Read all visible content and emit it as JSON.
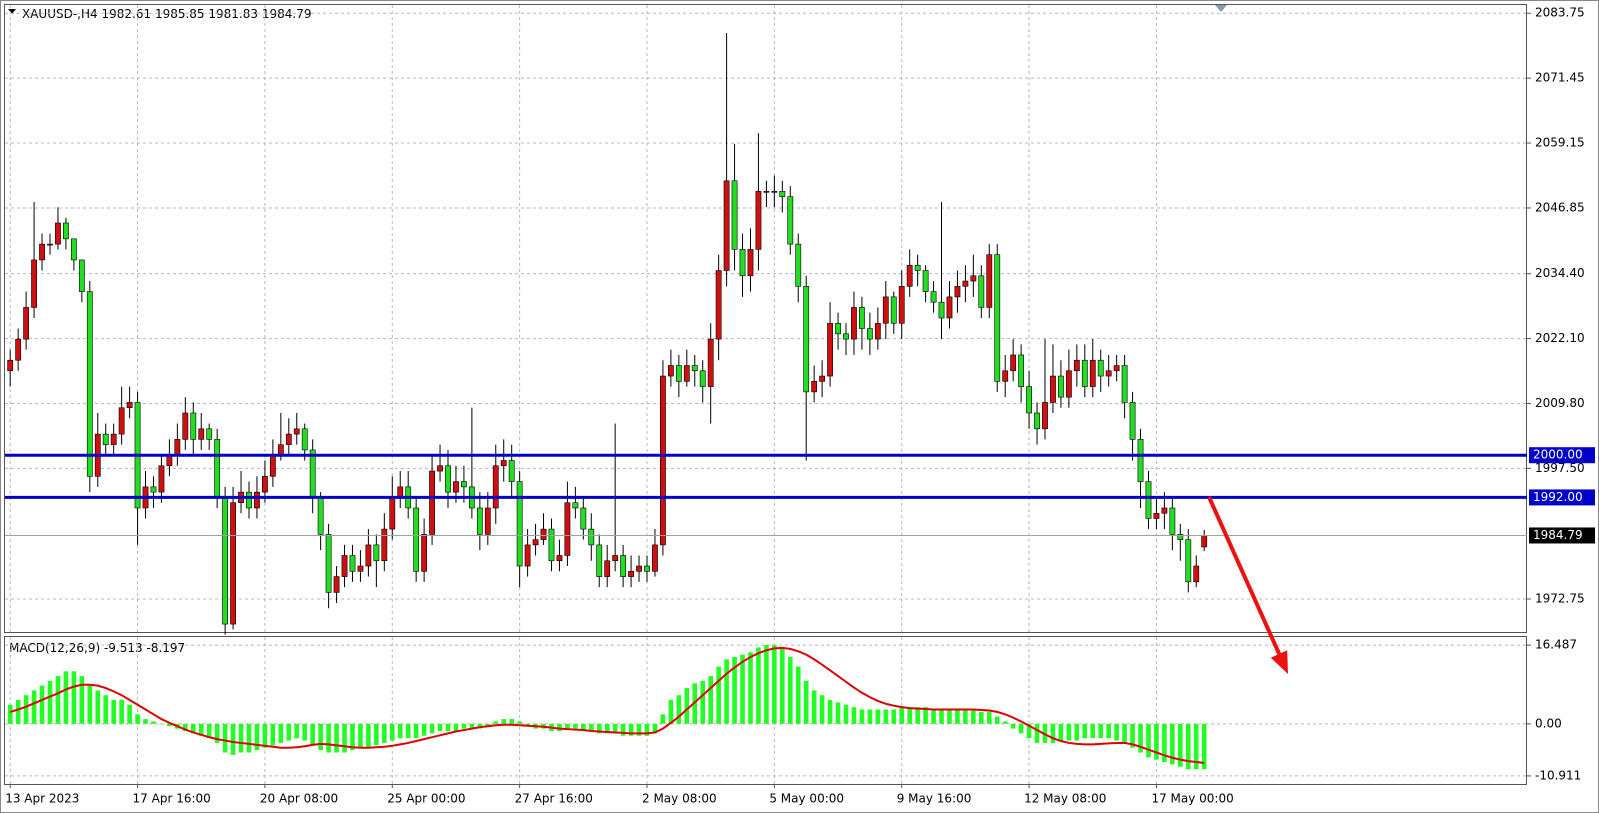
{
  "chart_data": [
    {
      "type": "candlestick",
      "symbol": "XAUUSD-,H4",
      "up_color": "#d01010",
      "down_color": "#22dd22",
      "ylim": [
        1966.5,
        2085.5
      ],
      "yticks": [
        2083.75,
        2071.45,
        2059.15,
        2046.85,
        {
          "value": 2034.4,
          "label": "2034.40"
        },
        {
          "value": 2022.1,
          "label": "2022.10"
        },
        {
          "value": 2009.8,
          "label": "2009.80"
        },
        {
          "value": 1997.5,
          "label": "1997.50"
        },
        1972.75
      ],
      "grid": true,
      "levels": [
        {
          "value": 2000,
          "label": "2000.00"
        },
        {
          "value": 1992,
          "label": "1992.00"
        }
      ],
      "level_color": "#0000c8",
      "categories": [
        "13 Apr 2023",
        null,
        null,
        null,
        null,
        null,
        null,
        null,
        null,
        null,
        null,
        null,
        null,
        null,
        null,
        null,
        "17 Apr 16:00",
        null,
        null,
        null,
        null,
        null,
        null,
        null,
        null,
        null,
        null,
        null,
        null,
        null,
        null,
        null,
        "20 Apr 08:00",
        null,
        null,
        null,
        null,
        null,
        null,
        null,
        null,
        null,
        null,
        null,
        null,
        null,
        null,
        null,
        "25 Apr 00:00",
        null,
        null,
        null,
        null,
        null,
        null,
        null,
        null,
        null,
        null,
        null,
        null,
        null,
        null,
        null,
        "27 Apr 16:00",
        null,
        null,
        null,
        null,
        null,
        null,
        null,
        null,
        null,
        null,
        null,
        null,
        null,
        null,
        null,
        "2 May 08:00",
        null,
        null,
        null,
        null,
        null,
        null,
        null,
        null,
        null,
        null,
        null,
        null,
        null,
        null,
        null,
        "5 May 00:00",
        null,
        null,
        null,
        null,
        null,
        null,
        null,
        null,
        null,
        null,
        null,
        null,
        null,
        null,
        null,
        "9 May 16:00",
        null,
        null,
        null,
        null,
        null,
        null,
        null,
        null,
        null,
        null,
        null,
        null,
        null,
        null,
        null,
        "12 May 08:00",
        null,
        null,
        null,
        null,
        null,
        null,
        null,
        null,
        null,
        null,
        null,
        null,
        null,
        null,
        null,
        "17 May 00:00",
        null,
        null,
        null,
        null,
        null,
        null
      ],
      "open": [
        2016,
        2018,
        2022,
        2028,
        2037,
        2040,
        2040,
        2044,
        2041,
        2037,
        2031,
        1996,
        2004,
        2002,
        2004,
        2009,
        2010,
        1990,
        1994,
        1993,
        1998,
        2000,
        2003,
        2008,
        2003,
        2005,
        2003,
        1992,
        1968,
        1991,
        1993,
        1990,
        1993,
        1996,
        2000,
        2002,
        2004,
        2005,
        2001,
        1992,
        1985,
        1974,
        1977,
        1981,
        1978,
        1979,
        1983,
        1980,
        1986,
        1992,
        1994,
        1990,
        1978,
        1985,
        1997,
        1998,
        1993,
        1995,
        1994,
        1990,
        1985,
        1990,
        1998,
        1999,
        1995,
        1979,
        1983,
        1984,
        1986,
        1980,
        1981,
        1991,
        1990,
        1986,
        1983,
        1977,
        1980,
        1981,
        1977,
        1978,
        1979,
        1978,
        1983,
        2015,
        2017,
        2014,
        2017,
        2016,
        2013,
        2022,
        2035,
        2052,
        2039,
        2034,
        2039,
        2050,
        2050,
        2050,
        2049,
        2040,
        2032,
        2012,
        2014,
        2015,
        2025,
        2023,
        2022,
        2028,
        2024,
        2022,
        2025,
        2030,
        2025,
        2032,
        2036,
        2035,
        2031,
        2029,
        2026,
        2030,
        2032,
        2033,
        2034,
        2028,
        2038,
        2014,
        2016,
        2019,
        2013,
        2008,
        2005,
        2010,
        2015,
        2011,
        2016,
        2018,
        2013,
        2018,
        2015,
        2016,
        2017,
        2010,
        2003,
        1995,
        1988,
        1989,
        1990,
        1985,
        1984,
        1976,
        1982.61
      ],
      "high": [
        2020,
        2024,
        2031,
        2048,
        2042,
        2042,
        2047,
        2045,
        2041,
        2037,
        2033,
        2008,
        2006,
        2006,
        2013,
        2013,
        2012,
        1997,
        1996,
        2000,
        2003,
        2006,
        2011,
        2010,
        2008,
        2006,
        2005,
        1994,
        1994,
        1997,
        1995,
        1996,
        1999,
        2003,
        2008,
        2007,
        2008,
        2006,
        2003,
        1993,
        1987,
        1979,
        1983,
        1983,
        1982,
        1986,
        1985,
        1989,
        1996,
        1997,
        1997,
        1992,
        1988,
        2000,
        2002,
        2001,
        1998,
        1998,
        2009,
        1993,
        1993,
        2002,
        2003,
        2002,
        1997,
        1986,
        1987,
        1989,
        1988,
        1984,
        1995,
        1994,
        1992,
        1989,
        1985,
        1983,
        2006,
        1983,
        1981,
        1981,
        1981,
        1986,
        2018,
        2020,
        2019,
        2020,
        2019,
        2018,
        2025,
        2038,
        2080,
        2059,
        2042,
        2043,
        2061,
        2052,
        2053,
        2052,
        2051,
        2042,
        2034,
        2017,
        2018,
        2029,
        2027,
        2025,
        2031,
        2030,
        2027,
        2028,
        2033,
        2031,
        2035,
        2039,
        2038,
        2036,
        2033,
        2048,
        2033,
        2035,
        2036,
        2038,
        2036,
        2040,
        2040,
        2019,
        2022,
        2021,
        2016,
        2010,
        2022,
        2021,
        2018,
        2020,
        2021,
        2021,
        2022,
        2020,
        2019,
        2019,
        2019,
        2012,
        2005,
        1997,
        1992,
        1993,
        1992,
        1987,
        1986,
        1981,
        1985.85
      ],
      "low": [
        2013,
        2016,
        2020,
        2026,
        2035,
        2038,
        2039,
        2039,
        2035,
        2029,
        1993,
        1994,
        2000,
        2000,
        2002,
        2007,
        1983,
        1988,
        1990,
        1991,
        1996,
        1998,
        2001,
        2000,
        2001,
        2001,
        1990,
        1966,
        1967,
        1989,
        1988,
        1988,
        1991,
        1994,
        1999,
        2000,
        2002,
        1999,
        1989,
        1982,
        1971,
        1972,
        1975,
        1976,
        1976,
        1977,
        1975,
        1978,
        1984,
        1990,
        1988,
        1976,
        1976,
        1983,
        1995,
        1990,
        1991,
        1991,
        1988,
        1982,
        1983,
        1987,
        1995,
        1992,
        1975,
        1977,
        1981,
        1983,
        1978,
        1978,
        1979,
        1988,
        1984,
        1980,
        1975,
        1975,
        1978,
        1975,
        1975,
        1976,
        1976,
        1977,
        1981,
        2013,
        2011,
        2013,
        2013,
        2010,
        2006,
        2018,
        2032,
        2035,
        2030,
        2031,
        2035,
        2047,
        2047,
        2046,
        2038,
        2029,
        1999,
        2010,
        2011,
        2013,
        2020,
        2019,
        2019,
        2020,
        2019,
        2020,
        2022,
        2023,
        2022,
        2030,
        2032,
        2029,
        2027,
        2022,
        2024,
        2027,
        2029,
        2030,
        2026,
        2026,
        2012,
        2011,
        2014,
        2010,
        2005,
        2002,
        2003,
        2008,
        2009,
        2009,
        2013,
        2011,
        2011,
        2012,
        2013,
        2014,
        2007,
        1999,
        1990,
        1986,
        1986,
        1986,
        1982,
        1980,
        1974,
        1975,
        1981.83
      ],
      "close": [
        2018,
        2022,
        2028,
        2037,
        2040,
        2040,
        2044,
        2041,
        2037,
        2031,
        1996,
        2004,
        2002,
        2004,
        2009,
        2010,
        1990,
        1994,
        1993,
        1998,
        2000,
        2003,
        2008,
        2003,
        2005,
        2003,
        1992,
        1968,
        1991,
        1993,
        1990,
        1993,
        1996,
        2000,
        2002,
        2004,
        2005,
        2001,
        1992,
        1985,
        1974,
        1977,
        1981,
        1978,
        1979,
        1983,
        1980,
        1986,
        1992,
        1994,
        1990,
        1978,
        1985,
        1997,
        1998,
        1993,
        1995,
        1994,
        1990,
        1985,
        1990,
        1998,
        1999,
        1995,
        1979,
        1983,
        1984,
        1986,
        1980,
        1981,
        1991,
        1990,
        1986,
        1983,
        1977,
        1980,
        1981,
        1977,
        1978,
        1979,
        1978,
        1983,
        2015,
        2017,
        2014,
        2017,
        2016,
        2013,
        2022,
        2035,
        2052,
        2039,
        2034,
        2039,
        2050,
        2050,
        2050,
        2049,
        2040,
        2032,
        2012,
        2014,
        2015,
        2025,
        2023,
        2022,
        2028,
        2024,
        2022,
        2025,
        2030,
        2025,
        2032,
        2036,
        2035,
        2031,
        2029,
        2026,
        2030,
        2032,
        2033,
        2034,
        2028,
        2038,
        2014,
        2016,
        2019,
        2013,
        2008,
        2005,
        2010,
        2015,
        2011,
        2016,
        2018,
        2013,
        2018,
        2015,
        2016,
        2017,
        2010,
        2003,
        1995,
        1988,
        1989,
        1990,
        1985,
        1984,
        1976,
        1979,
        1984.79
      ]
    },
    {
      "type": "macd",
      "title": "MACD(12,26,9)",
      "ylim": [
        -12.6,
        18.4
      ],
      "yticks": [
        16.487,
        {
          "value": 0,
          "label": "0.00"
        },
        -10.911
      ],
      "grid": true,
      "histogram": {
        "color": "#22ff22",
        "values": [
          4,
          5,
          6,
          7,
          8,
          9,
          10,
          11,
          11,
          10,
          8,
          7,
          6,
          5,
          5,
          4,
          2,
          1,
          0.5,
          0,
          -0.5,
          -1,
          -1.5,
          -2,
          -2.5,
          -3,
          -4,
          -6,
          -6.5,
          -6,
          -6,
          -5.5,
          -5,
          -4.5,
          -4,
          -3.5,
          -3,
          -3.5,
          -4.5,
          -5.5,
          -6,
          -6,
          -6,
          -5.5,
          -5,
          -5,
          -4.5,
          -4,
          -3.5,
          -3,
          -3,
          -3,
          -2.5,
          -2,
          -1.5,
          -1.5,
          -1.5,
          -1,
          -1,
          -1,
          -0.5,
          0.5,
          1,
          1,
          0.5,
          -0.5,
          -1,
          -1,
          -1.5,
          -1.5,
          -1,
          -1,
          -1.5,
          -1.5,
          -2,
          -2,
          -2,
          -2.5,
          -2.5,
          -2.5,
          -2.5,
          -2,
          2,
          5,
          6,
          7.5,
          8.5,
          9,
          10,
          12,
          13.5,
          14,
          14.5,
          15,
          16,
          16.5,
          16.5,
          16,
          14,
          12,
          9,
          7,
          6,
          5,
          4.5,
          4,
          3.5,
          3,
          3,
          3,
          3,
          3,
          3.5,
          3.5,
          3.5,
          3.5,
          3,
          3,
          3,
          3,
          3,
          3,
          2.5,
          2.5,
          1.5,
          0.5,
          -1,
          -2,
          -3,
          -4,
          -4,
          -4,
          -3.5,
          -3.5,
          -3.5,
          -3,
          -3,
          -3,
          -3,
          -3.5,
          -4,
          -5,
          -6,
          -7,
          -7.5,
          -8,
          -8.5,
          -9,
          -9.5,
          -9.5,
          -9.513
        ]
      },
      "signal": {
        "color": "#e00000",
        "values": [
          2.5,
          3,
          3.6,
          4.3,
          5,
          5.7,
          6.4,
          7.2,
          7.8,
          8.2,
          8.2,
          8,
          7.5,
          6.8,
          6,
          5,
          4,
          3,
          2,
          1,
          0.2,
          -0.5,
          -1.2,
          -1.8,
          -2.3,
          -2.8,
          -3.2,
          -3.5,
          -3.8,
          -4,
          -4.2,
          -4.4,
          -4.6,
          -4.8,
          -5,
          -5,
          -4.9,
          -4.7,
          -4.4,
          -4.2,
          -4.3,
          -4.5,
          -4.7,
          -4.9,
          -5,
          -5,
          -4.9,
          -4.8,
          -4.6,
          -4.3,
          -4,
          -3.6,
          -3.2,
          -2.8,
          -2.4,
          -2,
          -1.6,
          -1.3,
          -1,
          -0.7,
          -0.5,
          -0.3,
          -0.2,
          -0.2,
          -0.3,
          -0.4,
          -0.5,
          -0.6,
          -0.8,
          -1,
          -1.1,
          -1.2,
          -1.3,
          -1.5,
          -1.6,
          -1.7,
          -1.8,
          -1.9,
          -2,
          -2,
          -2,
          -1.8,
          -1,
          0.2,
          1.5,
          3,
          4.5,
          6,
          7.5,
          9,
          10.5,
          11.8,
          13,
          14,
          14.8,
          15.4,
          15.8,
          15.9,
          15.7,
          15.2,
          14.5,
          13.5,
          12.4,
          11.2,
          10,
          8.8,
          7.6,
          6.5,
          5.6,
          4.8,
          4.2,
          3.8,
          3.5,
          3.3,
          3.2,
          3.1,
          3,
          3,
          3,
          3,
          3,
          3,
          2.9,
          2.8,
          2.5,
          2,
          1.3,
          0.5,
          -0.4,
          -1.3,
          -2.2,
          -3,
          -3.6,
          -4,
          -4.2,
          -4.3,
          -4.3,
          -4.2,
          -4.1,
          -4,
          -4,
          -4.3,
          -4.8,
          -5.4,
          -6,
          -6.6,
          -7.1,
          -7.5,
          -7.8,
          -8,
          -8.197
        ]
      }
    }
  ]
}
